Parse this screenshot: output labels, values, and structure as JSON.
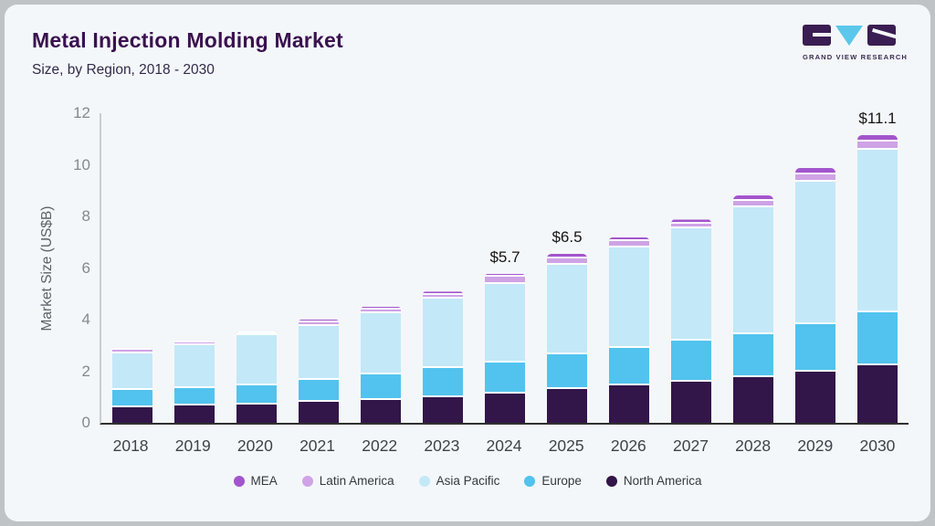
{
  "header": {
    "title": "Metal Injection Molding Market",
    "subtitle": "Size, by Region, 2018 - 2030",
    "logo_text": "GRAND VIEW RESEARCH"
  },
  "colors": {
    "card_background": "#f4f7f9",
    "frame_border": "#c0c3c5",
    "title_text": "#3a1150",
    "logo_purple": "#3a1d52",
    "logo_triangle_blue": "#5bc7ea",
    "axis_line_dark": "#303030",
    "axis_line_light": "#c9cdd0"
  },
  "chart_data": {
    "type": "bar",
    "stacked": true,
    "title": "Metal Injection Molding Market",
    "subtitle": "Size, by Region, 2018 - 2030",
    "xlabel": "",
    "ylabel": "Market Size (US$B)",
    "ylim": [
      0,
      12
    ],
    "yticks": [
      0,
      2,
      4,
      6,
      8,
      10,
      12
    ],
    "grid": false,
    "legend_position": "bottom",
    "categories": [
      "2018",
      "2019",
      "2020",
      "2021",
      "2022",
      "2023",
      "2024",
      "2025",
      "2026",
      "2027",
      "2028",
      "2029",
      "2030"
    ],
    "series": [
      {
        "name": "North America",
        "color": "#321549",
        "values": [
          0.62,
          0.66,
          0.72,
          0.8,
          0.88,
          1.0,
          1.15,
          1.3,
          1.45,
          1.6,
          1.77,
          2.0,
          2.23
        ]
      },
      {
        "name": "Europe",
        "color": "#52c3ee",
        "values": [
          0.65,
          0.7,
          0.73,
          0.88,
          1.0,
          1.12,
          1.2,
          1.36,
          1.46,
          1.57,
          1.68,
          1.82,
          2.04
        ]
      },
      {
        "name": "Asia Pacific",
        "color": "#c3e8f8",
        "values": [
          1.43,
          1.65,
          1.96,
          2.08,
          2.36,
          2.7,
          3.03,
          3.46,
          3.88,
          4.36,
          4.91,
          5.54,
          6.32
        ]
      },
      {
        "name": "Latin America",
        "color": "#cfa3e6",
        "values": [
          0.13,
          0.1,
          0.09,
          0.14,
          0.15,
          0.15,
          0.28,
          0.26,
          0.26,
          0.2,
          0.23,
          0.28,
          0.31
        ]
      },
      {
        "name": "MEA",
        "color": "#a355cd",
        "values": [
          0.07,
          0.06,
          0.05,
          0.11,
          0.11,
          0.12,
          0.11,
          0.18,
          0.15,
          0.15,
          0.24,
          0.24,
          0.25
        ]
      }
    ],
    "annotations": [
      {
        "category": "2024",
        "label": "$5.7"
      },
      {
        "category": "2025",
        "label": "$6.5"
      },
      {
        "category": "2030",
        "label": "$11.1"
      }
    ]
  },
  "legend": {
    "items": [
      {
        "label": "MEA",
        "color": "#a355cd"
      },
      {
        "label": "Latin America",
        "color": "#cfa3e6"
      },
      {
        "label": "Asia Pacific",
        "color": "#c3e8f8"
      },
      {
        "label": "Europe",
        "color": "#52c3ee"
      },
      {
        "label": "North America",
        "color": "#321549"
      }
    ]
  }
}
